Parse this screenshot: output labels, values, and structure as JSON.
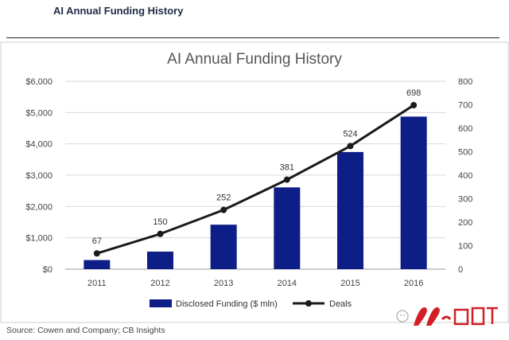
{
  "header": {
    "title": "AI Annual Funding History"
  },
  "footer": {
    "source": "Source: Cowen and Company; CB Insights"
  },
  "colors": {
    "bar": "#0e1e87",
    "line": "#1a1a1a",
    "grid": "#d9d9d9",
    "axis_text": "#444444"
  },
  "chart_data": {
    "type": "bar",
    "title": "AI Annual Funding History",
    "categories": [
      "2011",
      "2012",
      "2013",
      "2014",
      "2015",
      "2016"
    ],
    "series": [
      {
        "name": "Disclosed Funding ($ mln)",
        "type": "bar",
        "axis": "left",
        "values": [
          290,
          560,
          1420,
          2610,
          3740,
          4870
        ]
      },
      {
        "name": "Deals",
        "type": "line",
        "axis": "right",
        "values": [
          67,
          150,
          252,
          381,
          524,
          698
        ]
      }
    ],
    "data_labels": [
      "67",
      "150",
      "252",
      "381",
      "524",
      "698"
    ],
    "y_left": {
      "ylim": [
        0,
        6000
      ],
      "ticks": [
        "$0",
        "$1,000",
        "$2,000",
        "$3,000",
        "$4,000",
        "$5,000",
        "$6,000"
      ]
    },
    "y_right": {
      "ylim": [
        0,
        800
      ],
      "ticks": [
        "0",
        "100",
        "200",
        "300",
        "400",
        "500",
        "600",
        "700",
        "800"
      ]
    },
    "grid": true,
    "legend": {
      "position": "bottom",
      "items": [
        "Disclosed Funding ($ mln)",
        "Deals"
      ]
    }
  }
}
